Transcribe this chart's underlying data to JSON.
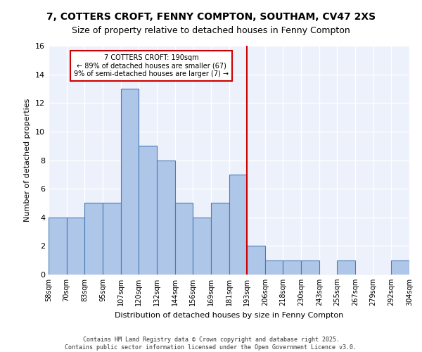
{
  "title_line1": "7, COTTERS CROFT, FENNY COMPTON, SOUTHAM, CV47 2XS",
  "title_line2": "Size of property relative to detached houses in Fenny Compton",
  "xlabel": "Distribution of detached houses by size in Fenny Compton",
  "ylabel": "Number of detached properties",
  "tick_labels": [
    "58sqm",
    "70sqm",
    "83sqm",
    "95sqm",
    "107sqm",
    "120sqm",
    "132sqm",
    "144sqm",
    "156sqm",
    "169sqm",
    "181sqm",
    "193sqm",
    "206sqm",
    "218sqm",
    "230sqm",
    "243sqm",
    "255sqm",
    "267sqm",
    "279sqm",
    "292sqm",
    "304sqm"
  ],
  "values": [
    4,
    4,
    5,
    5,
    13,
    9,
    8,
    5,
    4,
    5,
    7,
    2,
    1,
    1,
    1,
    0,
    1,
    0,
    0,
    1
  ],
  "bar_color": "#aec6e8",
  "bar_edge_color": "#4a7ab5",
  "red_line_bin_index": 11,
  "annotation_text": "7 COTTERS CROFT: 190sqm\n← 89% of detached houses are smaller (67)\n9% of semi-detached houses are larger (7) →",
  "annotation_box_facecolor": "#ffffff",
  "annotation_box_edgecolor": "#cc0000",
  "red_line_color": "#cc0000",
  "ax_facecolor": "#edf1fb",
  "grid_color": "#ffffff",
  "footer_text": "Contains HM Land Registry data © Crown copyright and database right 2025.\nContains public sector information licensed under the Open Government Licence v3.0.",
  "ylim": [
    0,
    16
  ],
  "yticks": [
    0,
    2,
    4,
    6,
    8,
    10,
    12,
    14,
    16
  ]
}
